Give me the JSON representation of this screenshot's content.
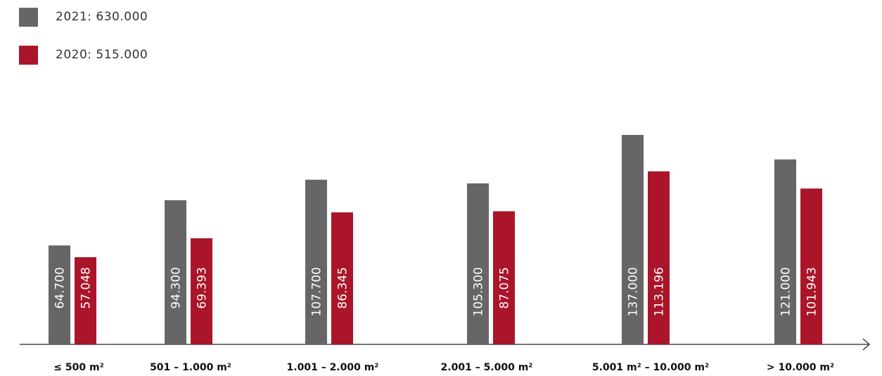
{
  "legend": {
    "items": [
      {
        "label": "2021: 630.000",
        "color": "#666666"
      },
      {
        "label": "2020: 515.000",
        "color": "#ab1529"
      }
    ]
  },
  "chart_data": {
    "type": "bar",
    "categories": [
      "≤ 500 m²",
      "501 – 1.000 m²",
      "1.001 – 2.000 m²",
      "2.001 – 5.000 m²",
      "5.001 m² – 10.000 m²",
      "> 10.000 m²"
    ],
    "series": [
      {
        "name": "2021: 630.000",
        "color": "#666666",
        "values": [
          64700,
          94300,
          107700,
          105300,
          137000,
          121000
        ],
        "value_labels": [
          "64.700",
          "94.300",
          "107.700",
          "105.300",
          "137.000",
          "121.000"
        ]
      },
      {
        "name": "2020: 515.000",
        "color": "#ab1529",
        "values": [
          57048,
          69393,
          86345,
          87075,
          113196,
          101943
        ],
        "value_labels": [
          "57.048",
          "69.393",
          "86.345",
          "87.075",
          "113.196",
          "101.943"
        ]
      }
    ],
    "ylim": [
      0,
      145000
    ],
    "grid": false,
    "legend_position": "top-left"
  }
}
